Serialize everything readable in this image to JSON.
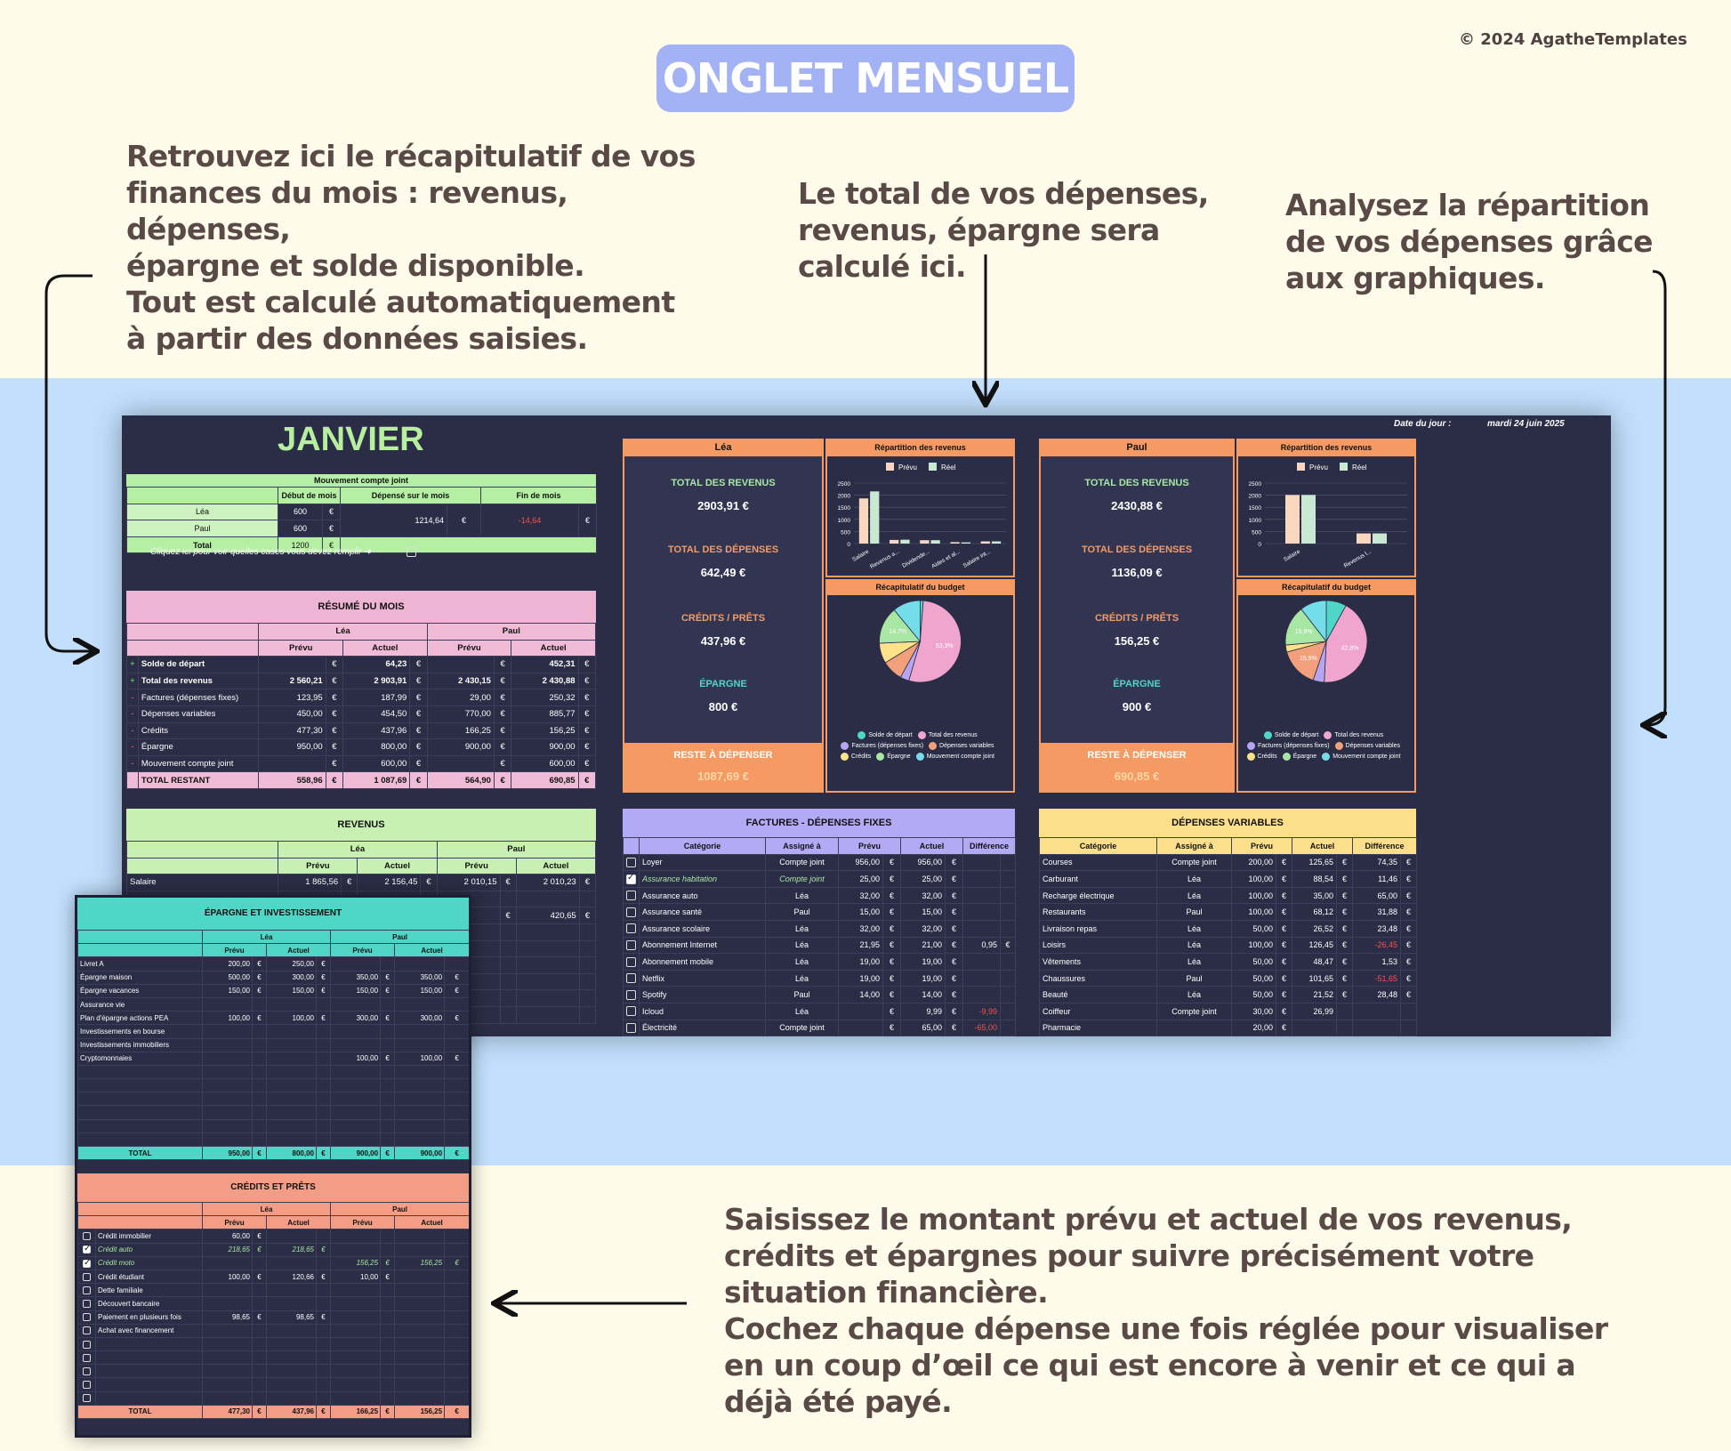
{
  "page": {
    "badge": "ONGLET MENSUEL",
    "copyright": "© 2024 AgatheTemplates",
    "annotation_summary": "Retrouvez ici le récapitulatif de vos\nfinances du mois : revenus, dépenses,\népargne et solde disponible.\nTout est calculé automatiquement\nà partir des données saisies.",
    "annotation_totals": "Le total de vos dépenses,\nrevenus, épargne sera\ncalculé ici.",
    "annotation_charts": "Analysez la répartition\nde vos dépenses grâce\naux graphiques.",
    "annotation_input": "Saisissez le montant prévu et actuel de vos revenus,\ncrédits et épargnes pour suivre précisément votre\nsituation financière.\nCochez chaque dépense une fois réglée pour visualiser\nen un coup d’œil ce qui est encore à venir et ce qui a\ndéjà été payé."
  },
  "sheet": {
    "month": "JANVIER",
    "date_label": "Date du jour :",
    "date_value": "mardi 24 juin 2025",
    "joint": {
      "title": "Mouvement compte joint",
      "col_start": "Début de mois",
      "col_spent": "Dépensé sur le mois",
      "col_end": "Fin de mois",
      "rows": [
        {
          "name": "Léa",
          "start": "600",
          "cur": "€"
        },
        {
          "name": "Paul",
          "start": "600",
          "cur": "€"
        },
        {
          "name": "Total",
          "start": "1200",
          "cur": "€"
        }
      ],
      "spent": "1214,64",
      "spent_cur": "€",
      "end": "-14,64",
      "end_cur": "€"
    },
    "hint": "Cliquez ici pour voir quelles cases vous devez remplir ➜",
    "resume": {
      "title": "RÉSUMÉ DU MOIS",
      "lea": "Léa",
      "paul": "Paul",
      "prevu": "Prévu",
      "actuel": "Actuel",
      "rows": [
        {
          "sign": "+",
          "label": "Solde de départ",
          "lp": "",
          "la": "64,23",
          "pp": "",
          "pa": "452,31"
        },
        {
          "sign": "+",
          "label": "Total des revenus",
          "lp": "2 560,21",
          "la": "2 903,91",
          "pp": "2 430,15",
          "pa": "2 430,88"
        },
        {
          "sign": "-",
          "label": "Factures (dépenses fixes)",
          "lp": "123,95",
          "la": "187,99",
          "pp": "29,00",
          "pa": "250,32"
        },
        {
          "sign": "-",
          "label": "Dépenses variables",
          "lp": "450,00",
          "la": "454,50",
          "pp": "770,00",
          "pa": "885,77"
        },
        {
          "sign": "-",
          "label": "Crédits",
          "lp": "477,30",
          "la": "437,96",
          "pp": "166,25",
          "pa": "156,25"
        },
        {
          "sign": "-",
          "label": "Épargne",
          "lp": "950,00",
          "la": "800,00",
          "pp": "900,00",
          "pa": "900,00"
        },
        {
          "sign": "-",
          "label": "Mouvement compte joint",
          "lp": "",
          "la": "600,00",
          "pp": "",
          "pa": "600,00"
        }
      ],
      "total_label": "TOTAL RESTANT",
      "total": {
        "lp": "558,96",
        "la": "1 087,69",
        "pp": "564,90",
        "pa": "690,85"
      },
      "cur": "€"
    },
    "revenus": {
      "title": "REVENUS",
      "lea": "Léa",
      "paul": "Paul",
      "prevu": "Prévu",
      "actuel": "Actuel",
      "rows": [
        {
          "label": "Salaire",
          "lp": "1 865,56",
          "la": "2 156,45",
          "pp": "2 010,15",
          "pa": "2 010,23"
        }
      ],
      "partial": [
        {
          "left": ",00",
          "right": "420,65"
        }
      ],
      "cur": "€"
    },
    "lea_panel": {
      "name": "Léa",
      "revenus_label": "TOTAL DES REVENUS",
      "revenus": "2903,91 €",
      "depenses_label": "TOTAL DES DÉPENSES",
      "depenses": "642,49 €",
      "credits_label": "CRÉDITS / PRÊTS",
      "credits": "437,96 €",
      "epargne_label": "ÉPARGNE",
      "epargne": "800 €",
      "reste_label": "RESTE À DÉPENSER",
      "reste": "1087,69 €",
      "chart1_title": "Répartition des revenus",
      "chart2_title": "Récapitulatif du budget",
      "pie_labels": [
        "14,7%",
        "53,3%"
      ]
    },
    "paul_panel": {
      "name": "Paul",
      "revenus_label": "TOTAL DES REVENUS",
      "revenus": "2430,88 €",
      "depenses_label": "TOTAL DES DÉPENSES",
      "depenses": "1136,09 €",
      "credits_label": "CRÉDITS / PRÊTS",
      "credits": "156,25 €",
      "epargne_label": "ÉPARGNE",
      "epargne": "900 €",
      "reste_label": "RESTE À DÉPENSER",
      "reste": "690,85 €",
      "chart1_title": "Répartition des revenus",
      "chart2_title": "Récapitulatif du budget",
      "pie_labels": [
        "15,9%",
        "15,6%",
        "42,8%"
      ]
    },
    "legend_items": [
      "Solde de départ",
      "Total des revenus",
      "Factures (dépenses fixes)",
      "Dépenses variables",
      "Crédits",
      "Épargne",
      "Mouvement compte joint"
    ],
    "legend_colors": [
      "#4fd6c6",
      "#f0a5cf",
      "#b8a5f2",
      "#f2a07b",
      "#fde28a",
      "#a8e6a3",
      "#74dde9"
    ],
    "bar_legend": {
      "prevu": "Prévu",
      "reel": "Réel",
      "prevu_color": "#f9d6bf",
      "reel_color": "#c9e9d2"
    },
    "factures": {
      "title": "FACTURES - DÉPENSES FIXES",
      "cols": [
        "Catégorie",
        "Assigné à",
        "Prévu",
        "Actuel",
        "Différence"
      ],
      "rows": [
        {
          "checked": false,
          "cat": "Loyer",
          "who": "Compte joint",
          "p": "956,00",
          "a": "956,00",
          "d": ""
        },
        {
          "checked": true,
          "cat": "Assurance habitation",
          "who": "Compte joint",
          "p": "25,00",
          "a": "25,00",
          "d": ""
        },
        {
          "checked": false,
          "cat": "Assurance auto",
          "who": "Léa",
          "p": "32,00",
          "a": "32,00",
          "d": ""
        },
        {
          "checked": false,
          "cat": "Assurance santé",
          "who": "Paul",
          "p": "15,00",
          "a": "15,00",
          "d": ""
        },
        {
          "checked": false,
          "cat": "Assurance scolaire",
          "who": "Léa",
          "p": "32,00",
          "a": "32,00",
          "d": ""
        },
        {
          "checked": false,
          "cat": "Abonnement Internet",
          "who": "Léa",
          "p": "21,95",
          "a": "21,00",
          "d": "0,95"
        },
        {
          "checked": false,
          "cat": "Abonnement mobile",
          "who": "Léa",
          "p": "19,00",
          "a": "19,00",
          "d": ""
        },
        {
          "checked": false,
          "cat": "Netflix",
          "who": "Léa",
          "p": "19,00",
          "a": "19,00",
          "d": ""
        },
        {
          "checked": false,
          "cat": "Spotify",
          "who": "Paul",
          "p": "14,00",
          "a": "14,00",
          "d": ""
        },
        {
          "checked": false,
          "cat": "Icloud",
          "who": "Léa",
          "p": "",
          "a": "9,99",
          "d": "-9,99"
        },
        {
          "checked": false,
          "cat": "Électricité",
          "who": "Compte joint",
          "p": "",
          "a": "65,00",
          "d": "-65,00"
        }
      ],
      "cur": "€"
    },
    "variables": {
      "title": "DÉPENSES VARIABLES",
      "cols": [
        "Catégorie",
        "Assigné à",
        "Prévu",
        "Actuel",
        "Différence"
      ],
      "rows": [
        {
          "cat": "Courses",
          "who": "Compte joint",
          "p": "200,00",
          "a": "125,65",
          "d": "74,35"
        },
        {
          "cat": "Carburant",
          "who": "Léa",
          "p": "100,00",
          "a": "88,54",
          "d": "11,46"
        },
        {
          "cat": "Recharge électrique",
          "who": "Léa",
          "p": "100,00",
          "a": "35,00",
          "d": "65,00"
        },
        {
          "cat": "Restaurants",
          "who": "Paul",
          "p": "100,00",
          "a": "68,12",
          "d": "31,88"
        },
        {
          "cat": "Livraison repas",
          "who": "Léa",
          "p": "50,00",
          "a": "26,52",
          "d": "23,48"
        },
        {
          "cat": "Loisirs",
          "who": "Léa",
          "p": "100,00",
          "a": "126,45",
          "d": "-26,45"
        },
        {
          "cat": "Vêtements",
          "who": "Léa",
          "p": "50,00",
          "a": "48,47",
          "d": "1,53"
        },
        {
          "cat": "Chaussures",
          "who": "Paul",
          "p": "50,00",
          "a": "101,65",
          "d": "-51,65"
        },
        {
          "cat": "Beauté",
          "who": "Léa",
          "p": "50,00",
          "a": "21,52",
          "d": "28,48"
        },
        {
          "cat": "Coiffeur",
          "who": "Compte joint",
          "p": "30,00",
          "a": "26,99",
          "d": ""
        },
        {
          "cat": "Pharmacie",
          "who": "",
          "p": "20,00",
          "a": "",
          "d": ""
        }
      ],
      "cur": "€"
    }
  },
  "overlay": {
    "epargne": {
      "title": "ÉPARGNE ET INVESTISSEMENT",
      "lea": "Léa",
      "paul": "Paul",
      "prevu": "Prévu",
      "actuel": "Actuel",
      "rows": [
        {
          "label": "Livret A",
          "lp": "200,00",
          "la": "250,00",
          "pp": "",
          "pa": ""
        },
        {
          "label": "Épargne maison",
          "lp": "500,00",
          "la": "300,00",
          "pp": "350,00",
          "pa": "350,00"
        },
        {
          "label": "Épargne vacances",
          "lp": "150,00",
          "la": "150,00",
          "pp": "150,00",
          "pa": "150,00"
        },
        {
          "label": "Assurance vie",
          "lp": "",
          "la": "",
          "pp": "",
          "pa": ""
        },
        {
          "label": "Plan d'épargne actions PEA",
          "lp": "100,00",
          "la": "100,00",
          "pp": "300,00",
          "pa": "300,00"
        },
        {
          "label": "Investissements en bourse",
          "lp": "",
          "la": "",
          "pp": "",
          "pa": ""
        },
        {
          "label": "Investissements immobiliers",
          "lp": "",
          "la": "",
          "pp": "",
          "pa": ""
        },
        {
          "label": "Cryptomonnaies",
          "lp": "",
          "la": "",
          "pp": "100,00",
          "pa": "100,00"
        }
      ],
      "total_label": "TOTAL",
      "total": {
        "lp": "950,00",
        "la": "800,00",
        "pp": "900,00",
        "pa": "900,00"
      },
      "cur": "€"
    },
    "credits": {
      "title": "CRÉDITS ET PRÊTS",
      "lea": "Léa",
      "paul": "Paul",
      "prevu": "Prévu",
      "actuel": "Actuel",
      "rows": [
        {
          "checked": false,
          "label": "Crédit immobilier",
          "lp": "60,00",
          "la": "",
          "pp": "",
          "pa": ""
        },
        {
          "checked": true,
          "label": "Crédit auto",
          "lp": "218,65",
          "la": "218,65",
          "pp": "",
          "pa": ""
        },
        {
          "checked": true,
          "label": "Crédit moto",
          "lp": "",
          "la": "",
          "pp": "156,25",
          "pa": "156,25"
        },
        {
          "checked": false,
          "label": "Crédit étudiant",
          "lp": "100,00",
          "la": "120,66",
          "pp": "10,00",
          "pa": ""
        },
        {
          "checked": false,
          "label": "Dette familiale",
          "lp": "",
          "la": "",
          "pp": "",
          "pa": ""
        },
        {
          "checked": false,
          "label": "Découvert bancaire",
          "lp": "",
          "la": "",
          "pp": "",
          "pa": ""
        },
        {
          "checked": false,
          "label": "Paiement en plusieurs fois",
          "lp": "98,65",
          "la": "98,65",
          "pp": "",
          "pa": ""
        },
        {
          "checked": false,
          "label": "Achat avec financement",
          "lp": "",
          "la": "",
          "pp": "",
          "pa": ""
        }
      ],
      "total_label": "TOTAL",
      "total": {
        "lp": "477,30",
        "la": "437,96",
        "pp": "166,25",
        "pa": "156,25"
      },
      "cur": "€"
    }
  },
  "chart_data": [
    {
      "type": "bar",
      "title": "Répartition des revenus",
      "categories": [
        "Salaire",
        "Revenus a...",
        "Dividende...",
        "Aides et al...",
        "Salaire int..."
      ],
      "series": [
        {
          "name": "Prévu",
          "values": [
            1865.56,
            150,
            140,
            60,
            90
          ]
        },
        {
          "name": "Réel",
          "values": [
            2156.45,
            160,
            140,
            50,
            90
          ]
        }
      ],
      "ylim": [
        0,
        2500
      ],
      "yticks": [
        "2500",
        "2000",
        "1500",
        "1000",
        "500",
        "0"
      ]
    },
    {
      "type": "pie",
      "title": "Récapitulatif du budget",
      "labels": [
        "Solde de départ",
        "Total des revenus",
        "Factures (dépenses fixes)",
        "Dépenses variables",
        "Crédits",
        "Épargne",
        "Mouvement compte joint"
      ],
      "values": [
        1.2,
        53.3,
        3.5,
        8.3,
        8.0,
        14.7,
        11.0
      ]
    },
    {
      "type": "bar",
      "title": "Répartition des revenus",
      "categories": [
        "Salaire",
        "Revenus l..."
      ],
      "series": [
        {
          "name": "Prévu",
          "values": [
            2010.15,
            420
          ]
        },
        {
          "name": "Réel",
          "values": [
            2010.23,
            420.65
          ]
        }
      ],
      "ylim": [
        0,
        2500
      ],
      "yticks": [
        "2500",
        "2000",
        "1500",
        "1000",
        "500",
        "0"
      ]
    },
    {
      "type": "pie",
      "title": "Récapitulatif du budget",
      "labels": [
        "Solde de départ",
        "Total des revenus",
        "Factures (dépenses fixes)",
        "Dépenses variables",
        "Crédits",
        "Épargne",
        "Mouvement compte joint"
      ],
      "values": [
        8.0,
        42.8,
        4.4,
        15.6,
        2.8,
        15.9,
        10.5
      ]
    }
  ]
}
